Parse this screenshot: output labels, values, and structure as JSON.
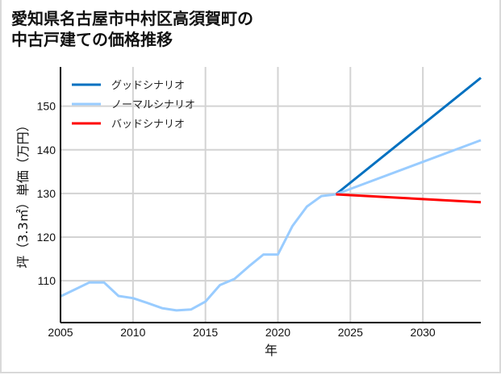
{
  "title_line1": "愛知県名古屋市中村区高須賀町の",
  "title_line2": "中古戸建ての価格推移",
  "chart_data": {
    "type": "line",
    "title": "愛知県名古屋市中村区高須賀町の中古戸建ての価格推移",
    "xlabel": "年",
    "ylabel": "坪（3.3㎡）単価（万円）",
    "xlim": [
      2005,
      2034
    ],
    "ylim": [
      100.4,
      159
    ],
    "x_ticks": [
      2005,
      2010,
      2015,
      2020,
      2025,
      2030
    ],
    "y_ticks": [
      110,
      120,
      130,
      140,
      150
    ],
    "grid": true,
    "legend_position": "upper left",
    "series": [
      {
        "name": "ノーマルシナリオ",
        "color": "#99ccff",
        "x": [
          2005,
          2006,
          2007,
          2008,
          2009,
          2010,
          2011,
          2012,
          2013,
          2014,
          2015,
          2016,
          2017,
          2018,
          2019,
          2020,
          2021,
          2022,
          2023,
          2024
        ],
        "values": [
          106.4,
          108.0,
          109.6,
          109.6,
          106.5,
          106.0,
          104.9,
          103.7,
          103.2,
          103.4,
          105.2,
          109.0,
          110.4,
          113.3,
          116.0,
          116.0,
          122.5,
          127.0,
          129.4,
          129.8
        ]
      },
      {
        "name": "グッドシナリオ",
        "color": "#0070c0",
        "x": [
          2024,
          2034
        ],
        "values": [
          129.8,
          156.5
        ]
      },
      {
        "name": "ノーマルシナリオ",
        "color": "#99ccff",
        "x": [
          2024,
          2034
        ],
        "values": [
          129.8,
          142.2
        ]
      },
      {
        "name": "バッドシナリオ",
        "color": "#ff0000",
        "x": [
          2024,
          2034
        ],
        "values": [
          129.8,
          128.0
        ]
      }
    ],
    "legend": [
      {
        "label": "グッドシナリオ",
        "color": "#0070c0"
      },
      {
        "label": "ノーマルシナリオ",
        "color": "#99ccff"
      },
      {
        "label": "バッドシナリオ",
        "color": "#ff0000"
      }
    ]
  }
}
